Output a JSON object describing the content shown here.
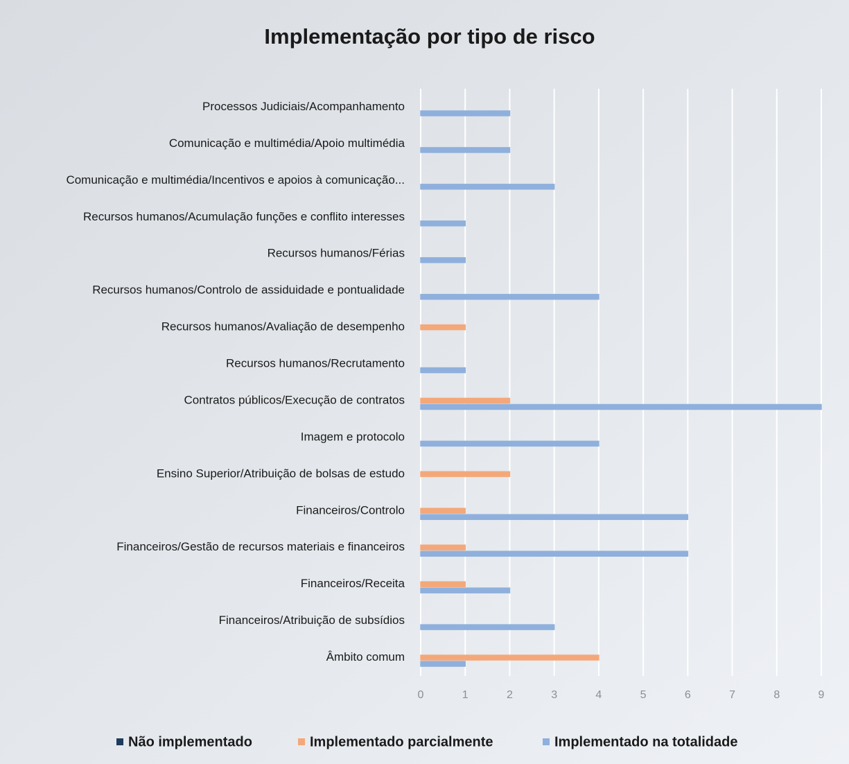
{
  "chart_data": {
    "type": "hbar",
    "title": "Implementação por tipo de risco",
    "categories": [
      "Processos Judiciais/Acompanhamento",
      "Comunicação e multimédia/Apoio multimédia",
      "Comunicação e multimédia/Incentivos e apoios à comunicação...",
      "Recursos humanos/Acumulação funções e conflito interesses",
      "Recursos humanos/Férias",
      "Recursos humanos/Controlo de assiduidade e pontualidade",
      "Recursos humanos/Avaliação de desempenho",
      "Recursos humanos/Recrutamento",
      "Contratos públicos/Execução de contratos",
      "Imagem e protocolo",
      "Ensino Superior/Atribuição de bolsas de estudo",
      "Financeiros/Controlo",
      "Financeiros/Gestão de recursos materiais e financeiros",
      "Financeiros/Receita",
      "Financeiros/Atribuição de subsídios",
      "Âmbito comum"
    ],
    "series": [
      {
        "name": "Não implementado",
        "color": "#1f3b5c",
        "values": [
          0,
          0,
          0,
          0,
          0,
          0,
          0,
          0,
          0,
          0,
          0,
          0,
          0,
          0,
          0,
          0
        ]
      },
      {
        "name": "Implementado parcialmente",
        "color": "#f4a87a",
        "values": [
          0,
          0,
          0,
          0,
          0,
          0,
          1,
          0,
          2,
          0,
          2,
          1,
          1,
          1,
          0,
          4
        ]
      },
      {
        "name": "Implementado na totalidade",
        "color": "#8fb0dc",
        "values": [
          2,
          2,
          3,
          1,
          1,
          4,
          0,
          1,
          9,
          4,
          0,
          6,
          6,
          2,
          3,
          1
        ]
      }
    ],
    "xlim": [
      0,
      9
    ],
    "xticks": [
      0,
      1,
      2,
      3,
      4,
      5,
      6,
      7,
      8,
      9
    ],
    "grid": true,
    "legend": "bottom"
  }
}
